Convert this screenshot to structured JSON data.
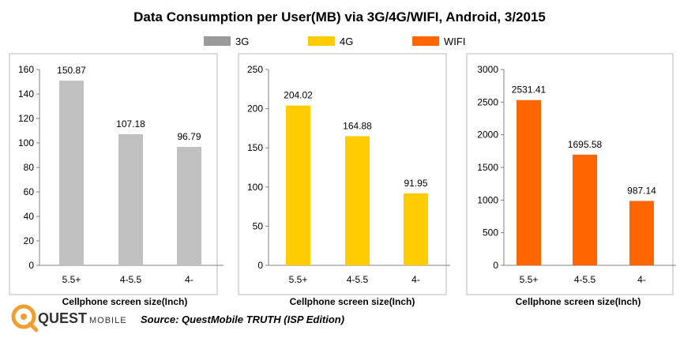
{
  "title": "Data Consumption per User(MB) via 3G/4G/WIFI, Android, 3/2015",
  "legend": [
    {
      "label": "3G",
      "color": "#999999"
    },
    {
      "label": "4G",
      "color": "#FFCC00"
    },
    {
      "label": "WIFI",
      "color": "#FF6600"
    }
  ],
  "source": "Source: QuestMobile TRUTH (ISP Edition)",
  "logo": {
    "brand": "QUEST",
    "sub": "MOBILE",
    "color": "#F0A030"
  },
  "chart_data": [
    {
      "type": "bar",
      "series_name": "3G",
      "categories": [
        "5.5+",
        "4-5.5",
        "4-"
      ],
      "values": [
        150.87,
        107.18,
        96.79
      ],
      "value_labels": [
        "150.87",
        "107.18",
        "96.79"
      ],
      "ylim": [
        0,
        160
      ],
      "yticks": [
        "0",
        "20",
        "40",
        "60",
        "80",
        "100",
        "120",
        "140",
        "160"
      ],
      "xlabel": "Cellphone screen size(Inch)",
      "bar_color": "#C0C0C0"
    },
    {
      "type": "bar",
      "series_name": "4G",
      "categories": [
        "5.5+",
        "4-5.5",
        "4-"
      ],
      "values": [
        204.02,
        164.88,
        91.95
      ],
      "value_labels": [
        "204.02",
        "164.88",
        "91.95"
      ],
      "ylim": [
        0,
        250
      ],
      "yticks": [
        "0",
        "50",
        "100",
        "150",
        "200",
        "250"
      ],
      "xlabel": "Cellphone screen size(Inch)",
      "bar_color": "#FFCC00"
    },
    {
      "type": "bar",
      "series_name": "WIFI",
      "categories": [
        "5.5+",
        "4-5.5",
        "4-"
      ],
      "values": [
        2531.41,
        1695.58,
        987.14
      ],
      "value_labels": [
        "2531.41",
        "1695.58",
        "987.14"
      ],
      "ylim": [
        0,
        3000
      ],
      "yticks": [
        "0",
        "500",
        "1000",
        "1500",
        "2000",
        "2500",
        "3000"
      ],
      "xlabel": "Cellphone screen size(Inch)",
      "bar_color": "#FF6600"
    }
  ]
}
